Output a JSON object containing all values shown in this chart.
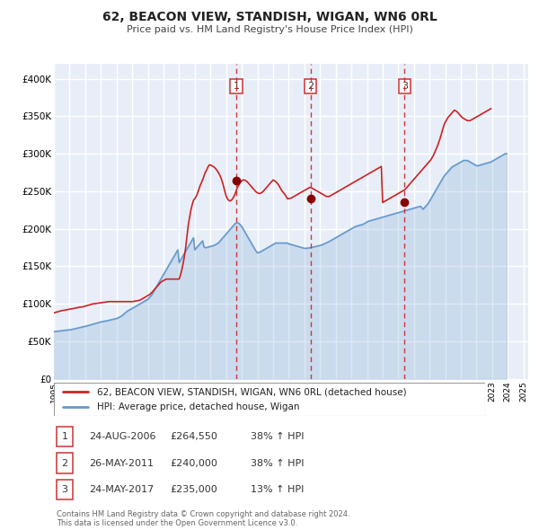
{
  "title": "62, BEACON VIEW, STANDISH, WIGAN, WN6 0RL",
  "subtitle": "Price paid vs. HM Land Registry's House Price Index (HPI)",
  "legend_line1": "62, BEACON VIEW, STANDISH, WIGAN, WN6 0RL (detached house)",
  "legend_line2": "HPI: Average price, detached house, Wigan",
  "footer1": "Contains HM Land Registry data © Crown copyright and database right 2024.",
  "footer2": "This data is licensed under the Open Government Licence v3.0.",
  "transactions": [
    {
      "num": 1,
      "date": "24-AUG-2006",
      "price": 264550,
      "pct": "38%",
      "dir": "↑",
      "x_year": 2006.647
    },
    {
      "num": 2,
      "date": "26-MAY-2011",
      "price": 240000,
      "pct": "38%",
      "dir": "↑",
      "x_year": 2011.4
    },
    {
      "num": 3,
      "date": "24-MAY-2017",
      "price": 235000,
      "pct": "13%",
      "dir": "↑",
      "x_year": 2017.4
    }
  ],
  "hpi_color": "#6699cc",
  "price_color": "#cc2222",
  "marker_color": "#880000",
  "vline_color": "#cc2222",
  "plot_bg": "#e8eef8",
  "grid_color": "#ffffff",
  "ylim": [
    0,
    420000
  ],
  "xlim_start": 1995.0,
  "xlim_end": 2025.3,
  "hpi_monthly": {
    "start_year": 1995,
    "start_month": 1,
    "values": [
      63000,
      63200,
      63400,
      63600,
      63800,
      64000,
      64200,
      64400,
      64600,
      64800,
      65000,
      65200,
      65400,
      65700,
      66000,
      66400,
      66800,
      67200,
      67600,
      68000,
      68400,
      68800,
      69200,
      69600,
      70000,
      70500,
      71000,
      71500,
      72000,
      72500,
      73000,
      73500,
      74000,
      74500,
      75000,
      75500,
      76000,
      76300,
      76600,
      77000,
      77300,
      77600,
      78000,
      78400,
      78800,
      79200,
      79600,
      80000,
      80500,
      81200,
      82000,
      83000,
      84000,
      85500,
      87000,
      88500,
      90000,
      91000,
      92000,
      93000,
      94000,
      95000,
      96000,
      97000,
      98000,
      99000,
      100000,
      101000,
      102000,
      103000,
      104000,
      105000,
      106000,
      108000,
      110000,
      112000,
      115000,
      118000,
      121000,
      124000,
      127000,
      130000,
      133000,
      136000,
      139000,
      142000,
      145000,
      148000,
      151000,
      154000,
      157000,
      160000,
      163000,
      166000,
      169000,
      172000,
      155000,
      158000,
      161000,
      164000,
      167000,
      170000,
      173000,
      176000,
      179000,
      182000,
      185000,
      188000,
      172000,
      174000,
      176000,
      178000,
      180000,
      182000,
      184000,
      176000,
      175000,
      175000,
      175500,
      176000,
      176500,
      177000,
      177500,
      178000,
      179000,
      180000,
      181000,
      183000,
      185000,
      187000,
      189000,
      191000,
      193000,
      195000,
      197000,
      199000,
      201000,
      203000,
      205000,
      207000,
      208000,
      208000,
      207000,
      205000,
      203000,
      200000,
      197000,
      194000,
      191000,
      188000,
      185000,
      182000,
      179000,
      176000,
      173000,
      170000,
      168000,
      168500,
      169000,
      170000,
      171000,
      172000,
      173000,
      174000,
      175000,
      176000,
      177000,
      178000,
      179000,
      180000,
      181000,
      181000,
      181000,
      181000,
      181000,
      181000,
      181000,
      181000,
      181000,
      181000,
      180000,
      179500,
      179000,
      178500,
      178000,
      177500,
      177000,
      176500,
      176000,
      175500,
      175000,
      174500,
      174000,
      174000,
      174200,
      174400,
      174600,
      175000,
      175400,
      175800,
      176200,
      176600,
      177000,
      177400,
      177800,
      178200,
      179000,
      179800,
      180600,
      181400,
      182200,
      183000,
      184000,
      185000,
      186000,
      187000,
      188000,
      189000,
      190000,
      191000,
      192000,
      193000,
      194000,
      195000,
      196000,
      197000,
      198000,
      199000,
      200000,
      201000,
      202000,
      203000,
      203500,
      204000,
      204500,
      205000,
      205500,
      206000,
      207000,
      208000,
      209000,
      210000,
      210500,
      211000,
      211500,
      212000,
      212500,
      213000,
      213500,
      214000,
      214500,
      215000,
      215500,
      216000,
      216500,
      217000,
      217500,
      218000,
      218500,
      219000,
      219500,
      220000,
      220500,
      221000,
      221500,
      222000,
      222500,
      223000,
      223500,
      224000,
      224500,
      225000,
      225500,
      226000,
      226500,
      227000,
      227500,
      228000,
      228500,
      229000,
      229500,
      230000,
      228000,
      226000,
      228000,
      230000,
      232000,
      234000,
      237000,
      240000,
      243000,
      246000,
      249000,
      252000,
      255000,
      258000,
      261000,
      264000,
      267000,
      270000,
      272000,
      274000,
      276000,
      278000,
      280000,
      282000,
      283000,
      284000,
      285000,
      286000,
      287000,
      288000,
      289000,
      290000,
      291000,
      291000,
      291000,
      291000,
      290000,
      289000,
      288000,
      287000,
      286000,
      285000,
      284000,
      284000,
      284500,
      285000,
      285500,
      286000,
      286500,
      287000,
      287500,
      288000,
      288500,
      289000,
      290000,
      291000,
      292000,
      293000,
      294000,
      295000,
      296000,
      297000,
      298000,
      299000,
      300000,
      300000
    ]
  },
  "price_monthly": {
    "start_year": 1995,
    "start_month": 1,
    "values": [
      88000,
      88500,
      89000,
      89500,
      90000,
      90500,
      91000,
      91200,
      91500,
      91800,
      92000,
      92500,
      93000,
      93200,
      93500,
      93800,
      94000,
      94500,
      95000,
      95300,
      95500,
      95800,
      96000,
      96500,
      97000,
      97500,
      98000,
      98500,
      99000,
      99500,
      100000,
      100200,
      100500,
      100700,
      101000,
      101200,
      101500,
      101700,
      102000,
      102200,
      102500,
      102700,
      103000,
      103000,
      103000,
      103000,
      103000,
      103000,
      103000,
      103000,
      103000,
      103000,
      103000,
      103000,
      103000,
      103000,
      103000,
      103000,
      103000,
      103000,
      103000,
      103200,
      103500,
      103800,
      104000,
      104500,
      105000,
      106000,
      107000,
      108000,
      109000,
      110000,
      111000,
      112000,
      113500,
      115000,
      117000,
      119000,
      121000,
      123000,
      125000,
      127000,
      129000,
      130000,
      131000,
      132000,
      133000,
      133000,
      133000,
      133000,
      133000,
      133000,
      133000,
      133000,
      133000,
      133000,
      133000,
      138000,
      145000,
      153000,
      163000,
      175000,
      190000,
      205000,
      215000,
      225000,
      232000,
      238000,
      240000,
      243000,
      247000,
      252000,
      257000,
      261000,
      265000,
      270000,
      275000,
      278000,
      282000,
      285000,
      285000,
      284000,
      283000,
      282000,
      280000,
      278000,
      275000,
      272000,
      268000,
      263000,
      257000,
      250000,
      244000,
      240000,
      238000,
      237000,
      238000,
      240000,
      243000,
      247000,
      252000,
      256000,
      259000,
      262000,
      264000,
      265000,
      265000,
      264000,
      263000,
      261000,
      259000,
      257000,
      255000,
      253000,
      251000,
      249000,
      248000,
      247000,
      247000,
      248000,
      249000,
      251000,
      253000,
      255000,
      257000,
      259000,
      261000,
      263000,
      265000,
      264000,
      263000,
      261000,
      259000,
      256000,
      253000,
      250000,
      248000,
      246000,
      243000,
      240000,
      240000,
      240500,
      241000,
      242000,
      243000,
      244000,
      245000,
      246000,
      247000,
      248000,
      249000,
      250000,
      251000,
      252000,
      253000,
      254000,
      255000,
      255000,
      254000,
      253000,
      252000,
      251000,
      250000,
      249000,
      248000,
      247000,
      246000,
      245000,
      244000,
      243000,
      243000,
      243000,
      244000,
      245000,
      246000,
      247000,
      248000,
      249000,
      250000,
      251000,
      252000,
      253000,
      254000,
      255000,
      256000,
      257000,
      258000,
      259000,
      260000,
      261000,
      262000,
      263000,
      264000,
      265000,
      266000,
      267000,
      268000,
      269000,
      270000,
      271000,
      272000,
      273000,
      274000,
      275000,
      276000,
      277000,
      278000,
      279000,
      280000,
      281000,
      282000,
      283000,
      235000,
      236000,
      237000,
      238000,
      239000,
      240000,
      241000,
      242000,
      243000,
      244000,
      245000,
      246000,
      247000,
      248000,
      249000,
      250000,
      251000,
      252000,
      254000,
      256000,
      258000,
      260000,
      262000,
      264000,
      266000,
      268000,
      270000,
      272000,
      274000,
      276000,
      278000,
      280000,
      282000,
      284000,
      286000,
      288000,
      290000,
      292000,
      295000,
      298000,
      302000,
      306000,
      310000,
      315000,
      320000,
      326000,
      332000,
      338000,
      342000,
      345000,
      348000,
      350000,
      352000,
      354000,
      356000,
      358000,
      357000,
      356000,
      354000,
      352000,
      350000,
      348000,
      347000,
      346000,
      345000,
      344000,
      344000,
      344000,
      345000,
      346000,
      347000,
      348000,
      349000,
      350000,
      351000,
      352000,
      353000,
      354000,
      355000,
      356000,
      357000,
      358000,
      359000,
      360000
    ]
  }
}
